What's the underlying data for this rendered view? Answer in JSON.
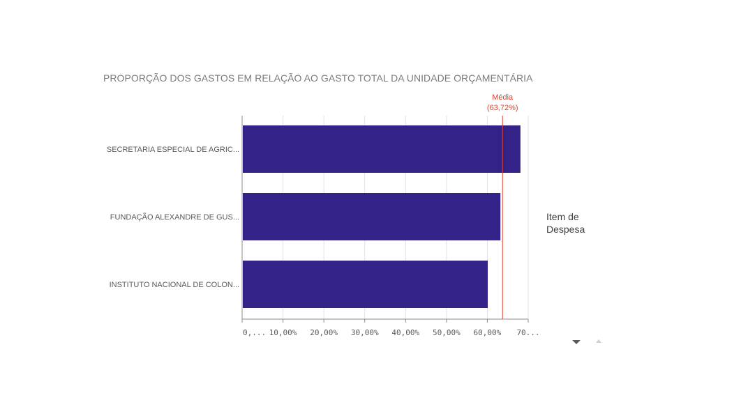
{
  "chart_data": {
    "type": "bar",
    "orientation": "horizontal",
    "title": "PROPORÇÃO DOS GASTOS EM RELAÇÃO AO GASTO TOTAL DA UNIDADE ORÇAMENTÁRIA",
    "categories": [
      "SECRETARIA ESPECIAL DE AGRIC...",
      "FUNDAÇÃO ALEXANDRE DE GUS...",
      "INSTITUTO NACIONAL DE COLON..."
    ],
    "values": [
      68.1,
      63.2,
      60.1
    ],
    "xlim": [
      0,
      70
    ],
    "x_ticks": [
      0,
      10,
      20,
      30,
      40,
      50,
      60,
      70
    ],
    "x_tick_labels": [
      "0,...",
      "10,00%",
      "20,00%",
      "30,00%",
      "40,00%",
      "50,00%",
      "60,00%",
      "70..."
    ],
    "grid": true,
    "reference_line": {
      "value": 63.72,
      "label_line1": "Média",
      "label_line2": "(63,72%)",
      "color": "#e0402a"
    },
    "bar_color": "#332288",
    "legend_title": "Item de Despesa"
  }
}
